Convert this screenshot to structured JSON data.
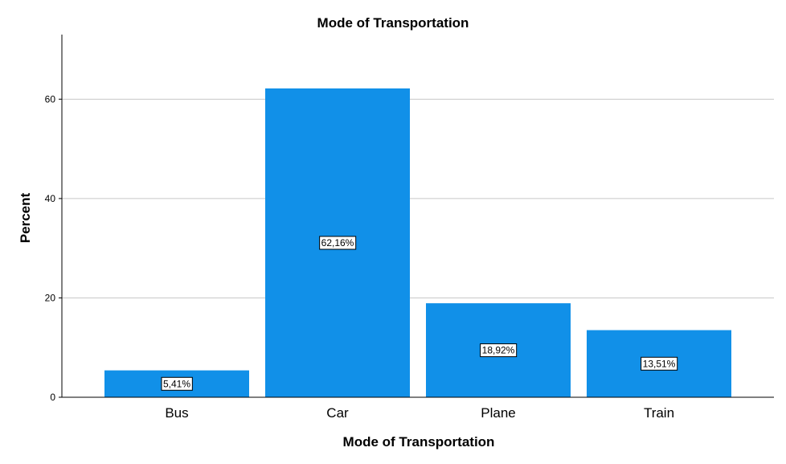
{
  "chart_data": {
    "type": "bar",
    "title": "Mode of Transportation",
    "xlabel": "Mode of Transportation",
    "ylabel": "Percent",
    "categories": [
      "Bus",
      "Car",
      "Plane",
      "Train"
    ],
    "values": [
      5.41,
      62.16,
      18.92,
      13.51
    ],
    "data_labels": [
      "5,41%",
      "62,16%",
      "18,92%",
      "13,51%"
    ],
    "ylim": [
      0,
      73
    ],
    "yticks": [
      0,
      20,
      40,
      60
    ],
    "grid": true,
    "legend": "none",
    "colors": {
      "bar": "#1190E8",
      "grid": "#C8C8C8",
      "axis": "#000000",
      "label_box": "#FFFFFF"
    }
  }
}
